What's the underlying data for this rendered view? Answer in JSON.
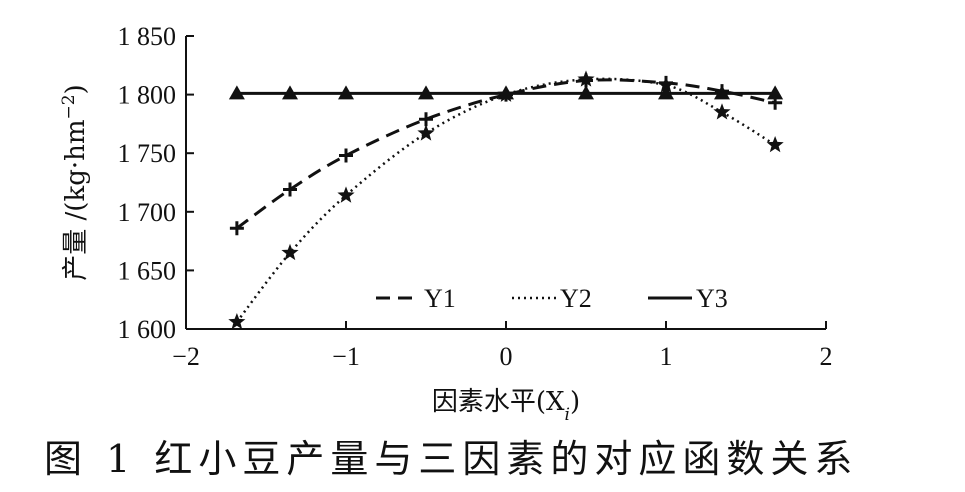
{
  "chart_data": {
    "type": "line",
    "title": "",
    "xlabel": "因素水平(X",
    "xlabel_sub": "i",
    "xlabel_close": ")",
    "ylabel": "产量 /(kg·hm",
    "ylabel_sup": "−2",
    "ylabel_close": ")",
    "xlim": [
      -2,
      2
    ],
    "ylim": [
      1600,
      1850
    ],
    "xticks": [
      -2,
      -1,
      0,
      1,
      2
    ],
    "xtick_labels": [
      "−2",
      "−1",
      "0",
      "1",
      "2"
    ],
    "yticks": [
      1600,
      1650,
      1700,
      1750,
      1800,
      1850
    ],
    "ytick_labels": [
      "1 600",
      "1 650",
      "1 700",
      "1 750",
      "1 800",
      "1 850"
    ],
    "grid": false,
    "legend_position": "bottom-center",
    "x": [
      -1.682,
      -1.35,
      -1.0,
      -0.5,
      0.0,
      0.5,
      1.0,
      1.35,
      1.682
    ],
    "series": [
      {
        "name": "Y1",
        "line_style": "dashed",
        "marker": "plus",
        "values": [
          1686,
          1719,
          1748,
          1779,
          1800,
          1812,
          1810,
          1803,
          1793
        ]
      },
      {
        "name": "Y2",
        "line_style": "dotted",
        "marker": "star",
        "values": [
          1606,
          1665,
          1714,
          1767,
          1800,
          1813,
          1808,
          1785,
          1757
        ]
      },
      {
        "name": "Y3",
        "line_style": "solid",
        "marker": "triangle",
        "values": [
          1801,
          1801,
          1801,
          1801,
          1801,
          1801,
          1801,
          1801,
          1801
        ]
      }
    ]
  },
  "caption": {
    "text": "图 1   红小豆产量与三因素的对应函数关系"
  }
}
